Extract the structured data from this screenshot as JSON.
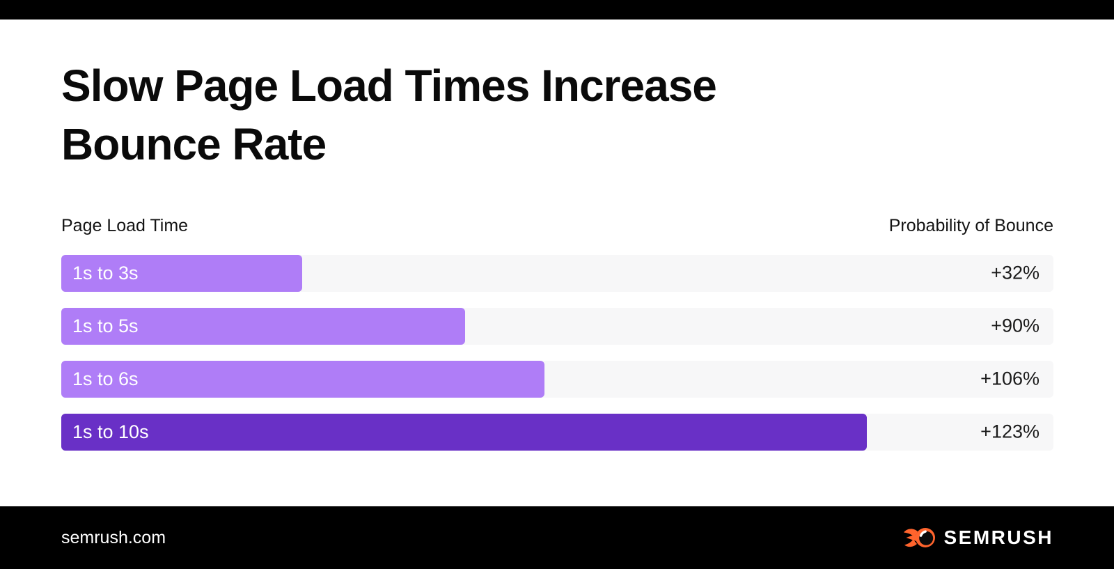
{
  "title": {
    "lines": [
      "Slow Page Load Times Increase",
      "Bounce Rate"
    ]
  },
  "chart_data": {
    "type": "bar",
    "orientation": "horizontal",
    "title": "Slow Page Load Times Increase Bounce Rate",
    "xlabel_left": "Page Load Time",
    "xlabel_right": "Probability of Bounce",
    "categories": [
      "1s to 3s",
      "1s to 5s",
      "1s to 6s",
      "1s to 10s"
    ],
    "values": [
      32,
      90,
      106,
      123
    ],
    "value_labels": [
      "+32%",
      "+90%",
      "+106%",
      "+123%"
    ],
    "bar_width_pct": [
      24.3,
      40.7,
      48.7,
      81.2
    ],
    "bar_colors": [
      "#af7df7",
      "#af7df7",
      "#af7df7",
      "#6930c6"
    ],
    "track_color": "#f7f7f8",
    "grid": false,
    "legend": false
  },
  "footer": {
    "url": "semrush.com",
    "logo_text": "SEMRUSH",
    "logo_icon": "semrush-flame-icon",
    "logo_icon_color": "#ff642d"
  },
  "colors": {
    "background": "#ffffff",
    "bar_light_purple": "#af7df7",
    "bar_dark_purple": "#6930c6",
    "track_gray": "#f7f7f8",
    "text_dark": "#0a0a0a",
    "footer_black": "#000000",
    "brand_orange": "#ff642d"
  }
}
